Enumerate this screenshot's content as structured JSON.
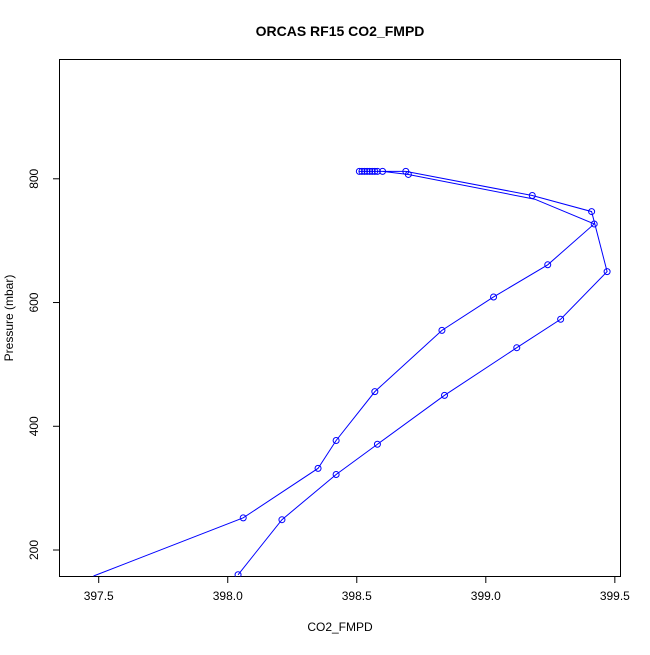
{
  "chart_data": {
    "type": "line",
    "title": "ORCAS RF15 CO2_FMPD",
    "xlabel": "CO2_FMPD",
    "ylabel": "Pressure (mbar)",
    "xlim": [
      397.35,
      399.52
    ],
    "ylim": [
      992,
      158
    ],
    "y_reversed": true,
    "x_ticks": [
      "397.5",
      "398.0",
      "398.5",
      "399.0",
      "399.5"
    ],
    "x_tick_values": [
      397.5,
      398.0,
      398.5,
      399.0,
      399.5
    ],
    "y_ticks": [
      "200",
      "400",
      "600",
      "800"
    ],
    "y_tick_values": [
      200,
      400,
      600,
      800
    ],
    "grid": false,
    "legend": "none",
    "series_color": "#0000ff",
    "marker": "open-circle",
    "series": [
      {
        "points": [
          {
            "x": 397.48,
            "y": 158,
            "marker": false
          },
          {
            "x": 398.06,
            "y": 252
          },
          {
            "x": 398.35,
            "y": 332
          },
          {
            "x": 398.42,
            "y": 377
          },
          {
            "x": 398.57,
            "y": 456
          },
          {
            "x": 398.83,
            "y": 555
          },
          {
            "x": 399.03,
            "y": 609
          },
          {
            "x": 399.24,
            "y": 661
          },
          {
            "x": 399.42,
            "y": 727
          },
          {
            "x": 399.19,
            "y": 767,
            "marker": false
          },
          {
            "x": 398.7,
            "y": 807
          },
          {
            "x": 398.6,
            "y": 812
          },
          {
            "x": 398.57,
            "y": 812
          },
          {
            "x": 398.55,
            "y": 812
          },
          {
            "x": 398.53,
            "y": 812
          },
          {
            "x": 398.51,
            "y": 812
          },
          {
            "x": 398.52,
            "y": 812
          },
          {
            "x": 398.54,
            "y": 812
          },
          {
            "x": 398.56,
            "y": 812
          },
          {
            "x": 398.58,
            "y": 812
          },
          {
            "x": 398.69,
            "y": 812
          },
          {
            "x": 399.18,
            "y": 773
          },
          {
            "x": 399.41,
            "y": 747
          },
          {
            "x": 399.47,
            "y": 650
          },
          {
            "x": 399.29,
            "y": 573
          },
          {
            "x": 399.12,
            "y": 527
          },
          {
            "x": 398.84,
            "y": 450
          },
          {
            "x": 398.58,
            "y": 371
          },
          {
            "x": 398.42,
            "y": 322
          },
          {
            "x": 398.21,
            "y": 249
          },
          {
            "x": 398.04,
            "y": 160
          }
        ]
      }
    ]
  }
}
